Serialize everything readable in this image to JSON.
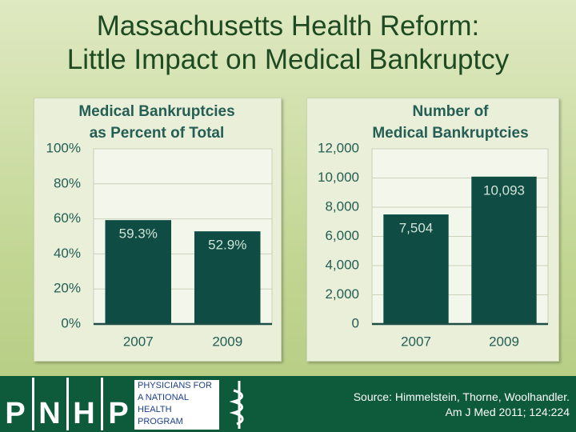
{
  "title": "Massachusetts Health Reform:\nLittle Impact on Medical Bankruptcy",
  "source": "Source: Himmelstein, Thorne, Woolhandler.\nAm J Med 2011; 124:224",
  "logo": {
    "letters": [
      "P",
      "N",
      "H",
      "P"
    ],
    "text": "PHYSICIANS FOR\nA NATIONAL\nHEALTH\nPROGRAM"
  },
  "chart_data": [
    {
      "type": "bar",
      "title": "Medical Bankruptcies\nas Percent of Total",
      "categories": [
        "2007",
        "2009"
      ],
      "values": [
        59.3,
        52.9
      ],
      "value_labels": [
        "59.3%",
        "52.9%"
      ],
      "color": "#0f4d44",
      "ylim": [
        0,
        100
      ],
      "yticks": [
        {
          "value": 0,
          "label": "0%"
        },
        {
          "value": 20,
          "label": "20%"
        },
        {
          "value": 40,
          "label": "40%"
        },
        {
          "value": 60,
          "label": "60%"
        },
        {
          "value": 80,
          "label": "80%"
        },
        {
          "value": 100,
          "label": "100%"
        }
      ],
      "grid": true
    },
    {
      "type": "bar",
      "title": "Number of\nMedical Bankruptcies",
      "categories": [
        "2007",
        "2009"
      ],
      "values": [
        7504,
        10093
      ],
      "value_labels": [
        "7,504",
        "10,093"
      ],
      "color": "#0f4d44",
      "ylim": [
        0,
        12000
      ],
      "yticks": [
        0,
        {
          "value": 2000,
          "label": "2,000"
        },
        {
          "value": 4000,
          "label": "4,000"
        },
        {
          "value": 6000,
          "label": "6,000"
        },
        {
          "value": 8000,
          "label": "8,000"
        },
        {
          "value": 10000,
          "label": "10,000"
        },
        {
          "value": 12000,
          "label": "12,000"
        }
      ],
      "grid": true
    }
  ]
}
